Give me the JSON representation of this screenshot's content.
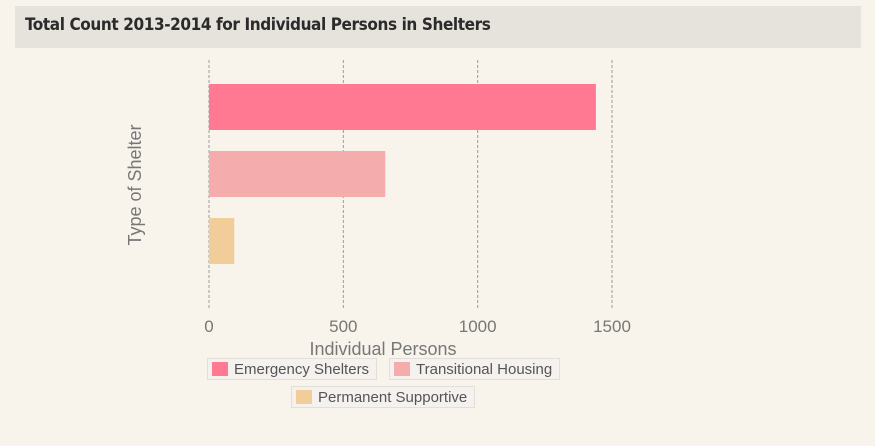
{
  "title": "Total Count 2013-2014 for Individual Persons in Shelters",
  "chart_data": {
    "type": "bar",
    "orientation": "horizontal",
    "categories": [
      "Emergency Shelters",
      "Transitional Housing",
      "Permanent Supportive"
    ],
    "values": [
      1440,
      656,
      94
    ],
    "colors": [
      "#ff7993",
      "#f4acac",
      "#f1cd9a"
    ],
    "xlabel": "Individual Persons",
    "ylabel": "Type of Shelter",
    "xlim": [
      0,
      1500
    ],
    "xticks": [
      0,
      500,
      1000,
      1500
    ],
    "grid": true,
    "grid_style": "dashed",
    "legend_position": "bottom"
  }
}
